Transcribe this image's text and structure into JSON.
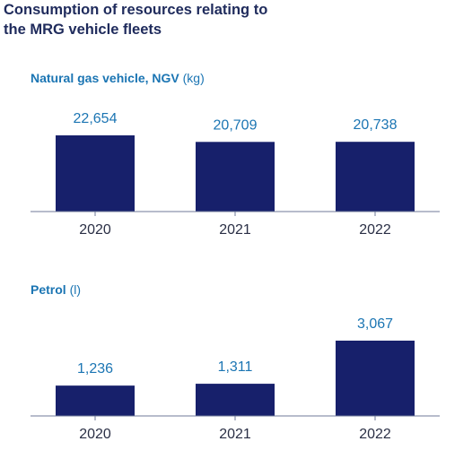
{
  "header": {
    "title_line1": "Consumption of resources relating to",
    "title_line2": "the MRG vehicle fleets"
  },
  "colors": {
    "bar": "#17206b",
    "value_label": "#1b75b3",
    "title": "#1f2b5c"
  },
  "chart_data": [
    {
      "type": "bar",
      "title": "Natural gas vehicle, NGV",
      "unit": "(kg)",
      "categories": [
        "2020",
        "2021",
        "2022"
      ],
      "values": [
        22654,
        20709,
        20738
      ],
      "value_labels": [
        "22,654",
        "20,709",
        "20,738"
      ],
      "xlabel": "",
      "ylabel": "",
      "grid": false
    },
    {
      "type": "bar",
      "title": "Petrol",
      "unit": "(l)",
      "categories": [
        "2020",
        "2021",
        "2022"
      ],
      "values": [
        1236,
        1311,
        3067
      ],
      "value_labels": [
        "1,236",
        "1,311",
        "3,067"
      ],
      "xlabel": "",
      "ylabel": "",
      "grid": false
    }
  ]
}
